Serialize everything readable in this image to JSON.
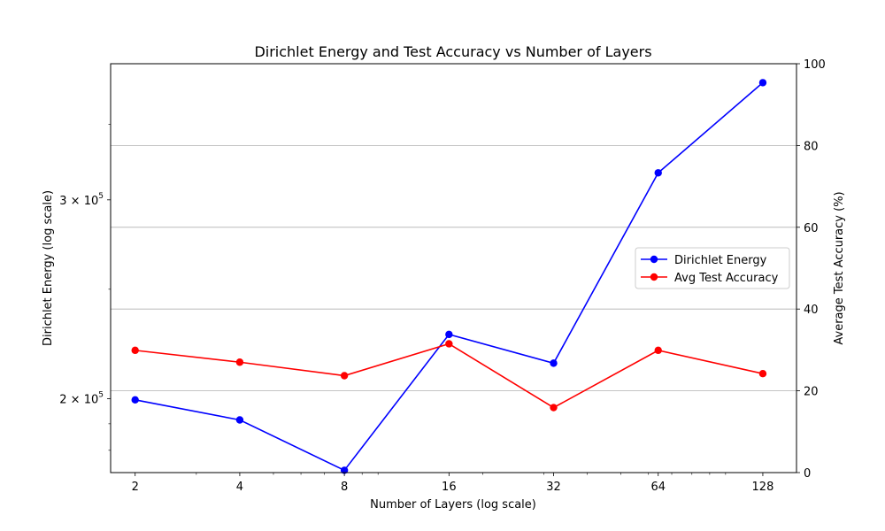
{
  "chart_data": {
    "type": "line",
    "title": "Dirichlet Energy and Test Accuracy vs Number of Layers",
    "xlabel": "Number of Layers (log scale)",
    "ylabel_left": "Dirichlet Energy (log scale)",
    "ylabel_right": "Average Test Accuracy (%)",
    "x_scale": "log2",
    "x": [
      2,
      4,
      8,
      16,
      32,
      64,
      128
    ],
    "x_tick_labels": [
      "2",
      "4",
      "8",
      "16",
      "32",
      "64",
      "128"
    ],
    "x_range": [
      1.7,
      160
    ],
    "y_left_scale": "log",
    "y_left_range": [
      172000,
      396000
    ],
    "y_left_ticks": [
      {
        "value": 200000,
        "mantissa": "2",
        "base": "10",
        "exponent": "5"
      },
      {
        "value": 300000,
        "mantissa": "3",
        "base": "10",
        "exponent": "5"
      }
    ],
    "y_right_range": [
      0,
      100
    ],
    "y_right_ticks": [
      0,
      20,
      40,
      60,
      80,
      100
    ],
    "grid": "right-axis horizontal",
    "legend_position": "center-right",
    "series": [
      {
        "name": "Dirichlet Energy",
        "axis": "left",
        "color": "#0000ff",
        "values": [
          199500,
          191500,
          172800,
          228000,
          215000,
          317000,
          381000
        ]
      },
      {
        "name": "Avg Test Accuracy",
        "axis": "right",
        "color": "#ff0000",
        "values": [
          29.9,
          27.0,
          23.7,
          31.5,
          15.9,
          29.9,
          24.2
        ]
      }
    ]
  }
}
